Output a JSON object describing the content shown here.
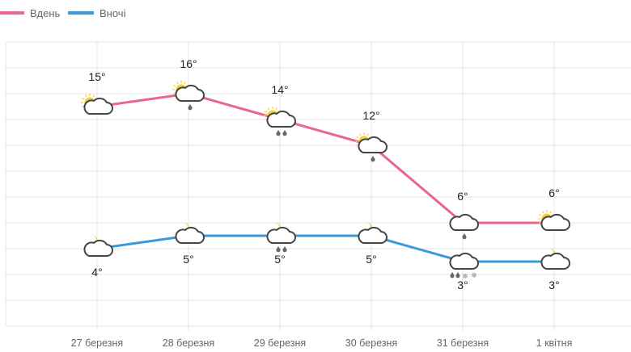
{
  "chart_data": {
    "type": "line",
    "categories": [
      "27 березня",
      "28 березня",
      "29 березня",
      "30 березня",
      "31 березня",
      "1 квітня"
    ],
    "ylim": [
      -2,
      20
    ],
    "grid": true,
    "legend_placement": "top-left",
    "series": [
      {
        "name": "Вдень",
        "color": "#e8678a",
        "values": [
          15,
          16,
          14,
          12,
          6,
          6
        ],
        "labels": [
          "15°",
          "16°",
          "14°",
          "12°",
          "6°",
          "6°"
        ],
        "icons": [
          "sun-cloud",
          "sun-cloud-rain",
          "sun-cloud-rain-heavy",
          "sun-cloud-rain",
          "cloud-rain",
          "sun-cloud"
        ]
      },
      {
        "name": "Вночі",
        "color": "#3a9ad9",
        "values": [
          4,
          5,
          5,
          5,
          3,
          3
        ],
        "labels": [
          "4°",
          "5°",
          "5°",
          "5°",
          "3°",
          "3°"
        ],
        "icons": [
          "moon-cloud",
          "moon-cloud",
          "moon-cloud-rain-heavy",
          "moon-cloud",
          "cloud-rain-snow",
          "moon-cloud"
        ]
      }
    ]
  }
}
